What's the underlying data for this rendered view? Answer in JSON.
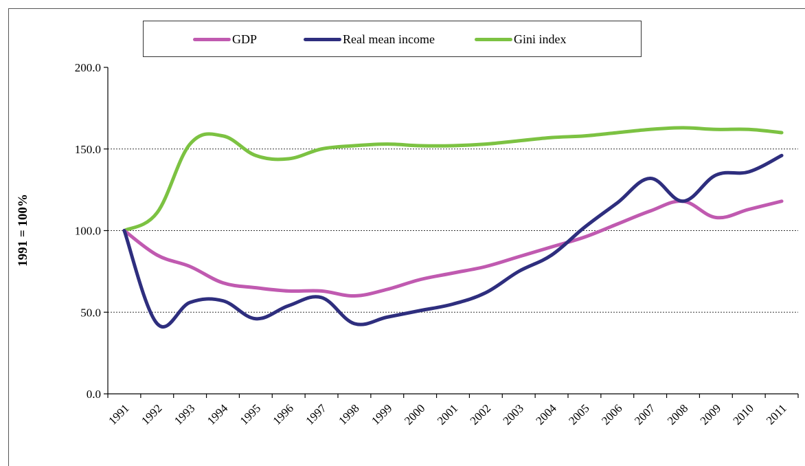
{
  "chart_data": {
    "type": "line",
    "ylabel": "1991 = 100%",
    "x": [
      "1991",
      "1992",
      "1993",
      "1994",
      "1995",
      "1996",
      "1997",
      "1998",
      "1999",
      "2000",
      "2001",
      "2002",
      "2003",
      "2004",
      "2005",
      "2006",
      "2007",
      "2008",
      "2009",
      "2010",
      "2011"
    ],
    "yticks": [
      "0.0",
      "50.0",
      "100.0",
      "150.0",
      "200.0"
    ],
    "ylim": [
      0,
      200
    ],
    "grid": "horizontal dashed at 50, 100, 150",
    "legend": "top",
    "series": [
      {
        "name": "GDP",
        "color": "#c05ab0",
        "values": [
          100,
          85,
          78,
          68,
          65,
          63,
          63,
          60,
          64,
          70,
          74,
          78,
          84,
          90,
          96,
          104,
          112,
          118,
          108,
          113,
          118
        ]
      },
      {
        "name": "Real mean income",
        "color": "#2e2e7e",
        "values": [
          100,
          43,
          56,
          57,
          46,
          54,
          59,
          43,
          47,
          51,
          55,
          62,
          75,
          85,
          102,
          117,
          132,
          118,
          134,
          136,
          146
        ]
      },
      {
        "name": "Gini index",
        "color": "#7cc242",
        "values": [
          100,
          111,
          153,
          158,
          146,
          144,
          150,
          152,
          153,
          152,
          152,
          153,
          155,
          157,
          158,
          160,
          162,
          163,
          162,
          162,
          160
        ]
      }
    ]
  }
}
